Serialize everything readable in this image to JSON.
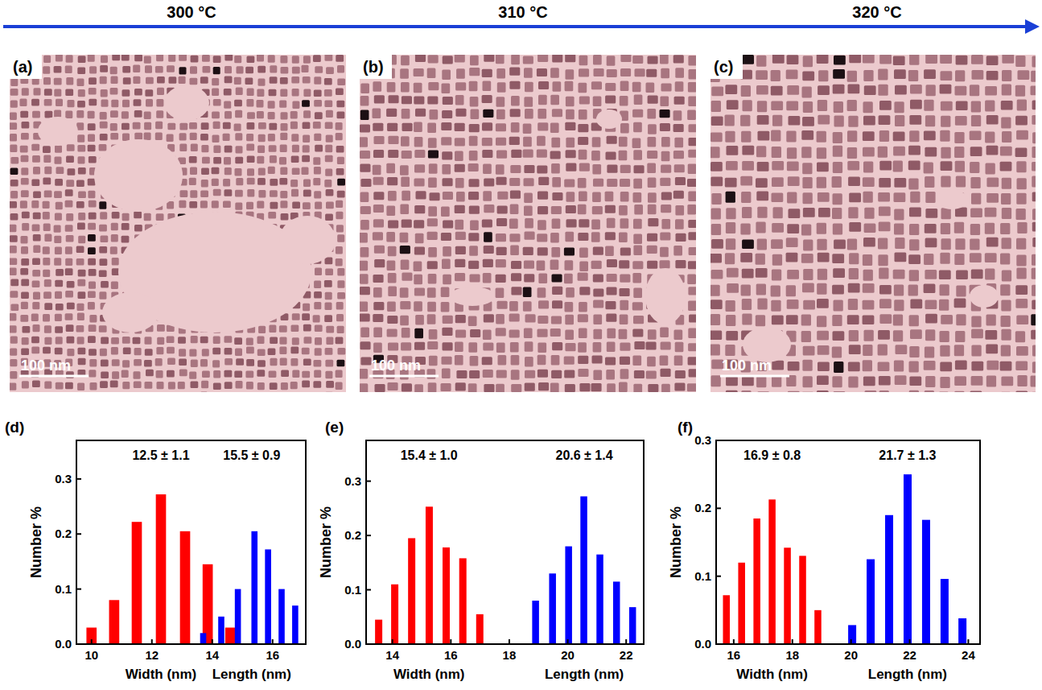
{
  "figure": {
    "header": [
      "300 °C",
      "310 °C",
      "320 °C"
    ],
    "images": [
      {
        "label": "(a)",
        "scale_bar": "100 nm"
      },
      {
        "label": "(b)",
        "scale_bar": "100 nm"
      },
      {
        "label": "(c)",
        "scale_bar": "100 nm"
      }
    ]
  },
  "chart_data": [
    {
      "type": "bar",
      "title": "(d)",
      "ylabel": "Number %",
      "annotations": [
        "12.5 ± 1.1",
        "15.5 ± 0.9"
      ],
      "xlim": [
        9.5,
        17.1
      ],
      "xticks": [
        10,
        12,
        14,
        16
      ],
      "ylim": [
        0,
        0.37
      ],
      "yticks": [
        {
          "value": 0,
          "label": "0.0"
        },
        0.1,
        0.2,
        0.3
      ],
      "series": [
        {
          "name": "Width (nm)",
          "color": "#ff0000",
          "x": [
            10.0,
            10.75,
            11.5,
            12.3,
            13.1,
            13.85,
            14.6
          ],
          "values": [
            0.03,
            0.08,
            0.222,
            0.272,
            0.205,
            0.145,
            0.03
          ]
        },
        {
          "name": "Length (nm)",
          "color": "#0000ff",
          "x": [
            13.7,
            14.3,
            14.85,
            15.4,
            15.85,
            16.3,
            16.75
          ],
          "values": [
            0.02,
            0.05,
            0.1,
            0.205,
            0.172,
            0.1,
            0.07
          ]
        }
      ]
    },
    {
      "type": "bar",
      "title": "(e)",
      "ylabel": "Number %",
      "annotations": [
        "15.4 ± 1.0",
        "20.6 ± 1.4"
      ],
      "xlim": [
        13.1,
        22.6
      ],
      "xticks": [
        14,
        16,
        18,
        20,
        22
      ],
      "ylim": [
        0,
        0.375
      ],
      "yticks": [
        {
          "value": 0,
          "label": "0.0"
        },
        0.1,
        0.2,
        0.3
      ],
      "series": [
        {
          "name": "Width (nm)",
          "color": "#ff0000",
          "x": [
            13.53,
            14.08,
            14.66,
            15.26,
            15.84,
            16.41,
            16.99
          ],
          "values": [
            0.045,
            0.11,
            0.195,
            0.253,
            0.178,
            0.158,
            0.055
          ]
        },
        {
          "name": "Length (nm)",
          "color": "#0000ff",
          "x": [
            18.9,
            19.48,
            20.03,
            20.55,
            21.1,
            21.67,
            22.22
          ],
          "values": [
            0.08,
            0.13,
            0.18,
            0.272,
            0.165,
            0.115,
            0.068
          ]
        }
      ]
    },
    {
      "type": "bar",
      "title": "(f)",
      "ylabel": "Number %",
      "annotations": [
        "16.9 ± 0.8",
        "21.7 ± 1.3"
      ],
      "xlim": [
        15.4,
        24.4
      ],
      "xticks": [
        16,
        18,
        20,
        22,
        24
      ],
      "ylim": [
        0,
        0.3
      ],
      "yticks": [
        {
          "value": 0,
          "label": "0.0"
        },
        0.1,
        0.2,
        0.3
      ],
      "series": [
        {
          "name": "Width (nm)",
          "color": "#ff0000",
          "x": [
            15.75,
            16.27,
            16.79,
            17.31,
            17.83,
            18.35,
            18.87
          ],
          "values": [
            0.072,
            0.12,
            0.185,
            0.213,
            0.142,
            0.13,
            0.05
          ]
        },
        {
          "name": "Length (nm)",
          "color": "#0000ff",
          "x": [
            20.04,
            20.67,
            21.3,
            21.93,
            22.56,
            23.19,
            23.8
          ],
          "values": [
            0.028,
            0.125,
            0.19,
            0.25,
            0.183,
            0.096,
            0.038
          ]
        }
      ]
    }
  ]
}
